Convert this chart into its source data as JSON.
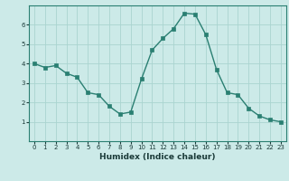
{
  "x": [
    0,
    1,
    2,
    3,
    4,
    5,
    6,
    7,
    8,
    9,
    10,
    11,
    12,
    13,
    14,
    15,
    16,
    17,
    18,
    19,
    20,
    21,
    22,
    23
  ],
  "y": [
    4.0,
    3.8,
    3.9,
    3.5,
    3.3,
    2.5,
    2.4,
    1.8,
    1.4,
    1.5,
    3.2,
    4.7,
    5.3,
    5.8,
    6.6,
    6.55,
    5.5,
    3.7,
    2.5,
    2.4,
    1.7,
    1.3,
    1.1,
    1.0
  ],
  "xlabel": "Humidex (Indice chaleur)",
  "line_color": "#2a7f72",
  "bg_color": "#cceae8",
  "grid_color": "#aad4d0",
  "ylim": [
    0,
    7
  ],
  "xlim": [
    -0.5,
    23.5
  ],
  "yticks": [
    1,
    2,
    3,
    4,
    5,
    6
  ],
  "xticks": [
    0,
    1,
    2,
    3,
    4,
    5,
    6,
    7,
    8,
    9,
    10,
    11,
    12,
    13,
    14,
    15,
    16,
    17,
    18,
    19,
    20,
    21,
    22,
    23
  ],
  "tick_fontsize": 5.0,
  "xlabel_fontsize": 6.5,
  "marker_size": 2.2,
  "linewidth": 1.0
}
